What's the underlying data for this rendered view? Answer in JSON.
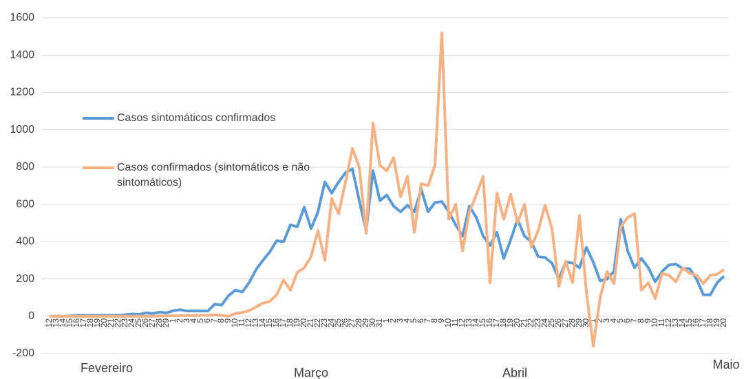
{
  "chart_data": {
    "type": "line",
    "categories": [
      "12",
      "13",
      "14",
      "15",
      "16",
      "17",
      "18",
      "19",
      "20",
      "21",
      "22",
      "23",
      "24",
      "25",
      "26",
      "27",
      "28",
      "29",
      "1",
      "2",
      "3",
      "4",
      "5",
      "6",
      "7",
      "8",
      "9",
      "10",
      "11",
      "12",
      "13",
      "14",
      "15",
      "16",
      "17",
      "18",
      "19",
      "20",
      "21",
      "22",
      "23",
      "24",
      "25",
      "26",
      "27",
      "28",
      "29",
      "30",
      "31",
      "1",
      "2",
      "3",
      "4",
      "5",
      "6",
      "7",
      "8",
      "9",
      "10",
      "11",
      "12",
      "13",
      "14",
      "15",
      "16",
      "17",
      "18",
      "19",
      "20",
      "21",
      "22",
      "23",
      "24",
      "25",
      "26",
      "27",
      "28",
      "29",
      "30",
      "1",
      "2",
      "3",
      "4",
      "5",
      "6",
      "7",
      "8",
      "9",
      "10",
      "11",
      "12",
      "13",
      "14",
      "15",
      "16",
      "17",
      "18",
      "19",
      "20"
    ],
    "series": [
      {
        "name": "Casos sintomáticos confirmados",
        "color": "#5b9bd5",
        "values": [
          0,
          0,
          0,
          2,
          5,
          5,
          5,
          5,
          5,
          5,
          5,
          8,
          12,
          10,
          18,
          15,
          22,
          18,
          30,
          35,
          28,
          28,
          28,
          28,
          65,
          60,
          110,
          140,
          130,
          180,
          250,
          300,
          345,
          405,
          400,
          490,
          480,
          585,
          470,
          560,
          720,
          660,
          720,
          770,
          790,
          620,
          460,
          780,
          620,
          650,
          590,
          560,
          595,
          560,
          680,
          560,
          610,
          615,
          560,
          490,
          430,
          590,
          530,
          430,
          380,
          450,
          310,
          410,
          520,
          430,
          400,
          320,
          315,
          285,
          200,
          290,
          285,
          260,
          370,
          290,
          190,
          200,
          240,
          520,
          350,
          260,
          310,
          260,
          185,
          240,
          275,
          280,
          255,
          255,
          200,
          115,
          115,
          180,
          215
        ]
      },
      {
        "name": "Casos confirmados (sintomáticos e não sintomáticos)",
        "color": "#f4b183",
        "values": [
          0,
          0,
          0,
          0,
          0,
          0,
          0,
          0,
          0,
          0,
          0,
          0,
          0,
          0,
          0,
          0,
          2,
          2,
          3,
          3,
          4,
          4,
          5,
          5,
          8,
          5,
          0,
          15,
          20,
          30,
          50,
          70,
          80,
          115,
          195,
          140,
          235,
          260,
          320,
          460,
          300,
          630,
          550,
          720,
          900,
          800,
          445,
          1035,
          810,
          780,
          850,
          640,
          750,
          450,
          710,
          700,
          810,
          1520,
          520,
          600,
          350,
          560,
          650,
          750,
          180,
          660,
          520,
          655,
          500,
          600,
          370,
          460,
          595,
          470,
          160,
          295,
          180,
          540,
          130,
          -160,
          100,
          240,
          175,
          480,
          530,
          550,
          140,
          180,
          95,
          230,
          220,
          185,
          260,
          230,
          220,
          175,
          220,
          225,
          250
        ]
      }
    ],
    "annotations": [
      "Fevereiro",
      "Março",
      "Abril",
      "Maio"
    ],
    "ylim": [
      -200,
      1600
    ],
    "yticks": [
      -200,
      0,
      200,
      400,
      600,
      800,
      1000,
      1200,
      1400,
      1600
    ],
    "grid": true
  }
}
